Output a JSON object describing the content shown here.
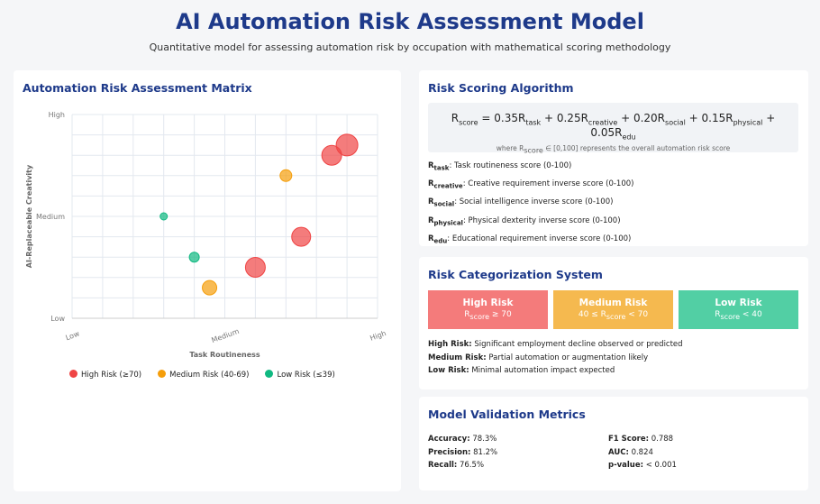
{
  "header": {
    "title": "AI Automation Risk Assessment Model",
    "subtitle": "Quantitative model for assessing automation risk by occupation with mathematical scoring methodology"
  },
  "chart_data": {
    "type": "scatter",
    "title": "Automation Risk Assessment Matrix",
    "xlabel": "Task Routineness",
    "ylabel": "AI-Replaceable Creativity",
    "xlim": [
      0,
      10
    ],
    "ylim": [
      0,
      10
    ],
    "grid": true,
    "xticks": [
      {
        "v": 0,
        "label": "Low"
      },
      {
        "v": 5,
        "label": "Medium"
      },
      {
        "v": 10,
        "label": "High"
      }
    ],
    "yticks": [
      {
        "v": 0,
        "label": "Low"
      },
      {
        "v": 5,
        "label": "Medium"
      },
      {
        "v": 10,
        "label": "High"
      }
    ],
    "legend_position": "bottom",
    "series": [
      {
        "name": "High Risk (≥70)",
        "color": "#ef4444",
        "points": [
          {
            "x": 6.0,
            "y": 2.5,
            "size": 11
          },
          {
            "x": 7.5,
            "y": 4.0,
            "size": 10.5
          },
          {
            "x": 8.5,
            "y": 8.0,
            "size": 11
          },
          {
            "x": 9.0,
            "y": 8.5,
            "size": 12
          }
        ]
      },
      {
        "name": "Medium Risk (40-69)",
        "color": "#f59e0b",
        "points": [
          {
            "x": 4.5,
            "y": 1.5,
            "size": 8
          },
          {
            "x": 7.0,
            "y": 7.0,
            "size": 6.5
          }
        ]
      },
      {
        "name": "Low Risk (≤39)",
        "color": "#10b981",
        "points": [
          {
            "x": 3.0,
            "y": 5.0,
            "size": 4
          },
          {
            "x": 4.0,
            "y": 3.0,
            "size": 5.5
          }
        ]
      }
    ]
  },
  "algorithm": {
    "title": "Risk Scoring Algorithm",
    "formula": {
      "lhs": "R",
      "lhs_sub": "score",
      "terms": [
        {
          "op": " = 0.35R",
          "sub": "task"
        },
        {
          "op": " + 0.25R",
          "sub": "creative"
        },
        {
          "op": " + 0.20R",
          "sub": "social"
        },
        {
          "op": " + 0.15R",
          "sub": "physical"
        },
        {
          "op": " + 0.05R",
          "sub": "edu"
        }
      ],
      "note_pre": "where R",
      "note_sub": "score",
      "note_post": " ∈ [0,100] represents the overall automation risk score"
    },
    "definitions": [
      {
        "sub": "task",
        "text": ": Task routineness score (0-100)"
      },
      {
        "sub": "creative",
        "text": ": Creative requirement inverse score (0-100)"
      },
      {
        "sub": "social",
        "text": ": Social intelligence inverse score (0-100)"
      },
      {
        "sub": "physical",
        "text": ": Physical dexterity inverse score (0-100)"
      },
      {
        "sub": "edu",
        "text": ": Educational requirement inverse score (0-100)"
      }
    ]
  },
  "categorization": {
    "title": "Risk Categorization System",
    "cards": [
      {
        "name": "High Risk",
        "pre": "R",
        "sub": "score",
        "post": " ≥ 70",
        "color": "#f47b7b"
      },
      {
        "name": "Medium Risk",
        "pre": "40 ≤ R",
        "sub": "score",
        "post": " < 70",
        "color": "#f5b94f"
      },
      {
        "name": "Low Risk",
        "pre": "R",
        "sub": "score",
        "post": " < 40",
        "color": "#52cfa4"
      }
    ],
    "descriptions": [
      {
        "label": "High Risk:",
        "text": "Significant employment decline observed or predicted"
      },
      {
        "label": "Medium Risk:",
        "text": "Partial automation or augmentation likely"
      },
      {
        "label": "Low Risk:",
        "text": "Minimal automation impact expected"
      }
    ]
  },
  "validation": {
    "title": "Model Validation Metrics",
    "metrics": [
      {
        "label": "Accuracy:",
        "value": "78.3%"
      },
      {
        "label": "F1 Score:",
        "value": "0.788"
      },
      {
        "label": "Precision:",
        "value": "81.2%"
      },
      {
        "label": "AUC:",
        "value": "0.824"
      },
      {
        "label": "Recall:",
        "value": "76.5%"
      },
      {
        "label": "p-value:",
        "value": "< 0.001"
      }
    ]
  }
}
